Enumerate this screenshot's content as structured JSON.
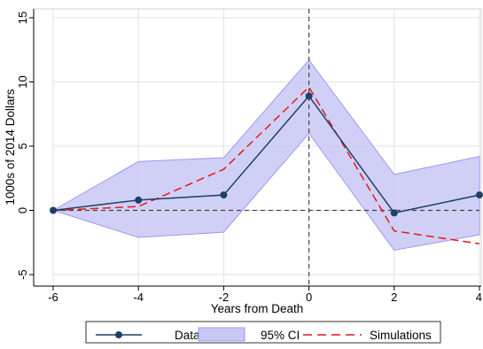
{
  "chart_data": {
    "type": "line",
    "xlabel": "Years from Death",
    "ylabel": "1000s of 2014 Dollars",
    "xlim": [
      -6,
      4
    ],
    "ylim": [
      -5,
      15
    ],
    "x_ticks": [
      -6,
      -4,
      -2,
      0,
      2,
      4
    ],
    "y_ticks": [
      -5,
      0,
      5,
      10,
      15
    ],
    "x": [
      -6,
      -4,
      -2,
      0,
      2,
      4
    ],
    "series": [
      {
        "name": "Data",
        "style": "solid-line-with-markers",
        "color": "#1f3f66",
        "values": [
          0,
          0.8,
          1.2,
          8.9,
          -0.2,
          1.2
        ]
      },
      {
        "name": "95% CI",
        "style": "band",
        "color": "#c8c8f4",
        "lower": [
          0,
          -2.1,
          -1.7,
          6.0,
          -3.1,
          -1.9
        ],
        "upper": [
          0,
          3.8,
          4.1,
          11.7,
          2.8,
          4.2
        ]
      },
      {
        "name": "Simulations",
        "style": "dashed-line",
        "color": "#e8171c",
        "values": [
          0,
          0.3,
          3.2,
          9.6,
          -1.6,
          -2.6
        ]
      }
    ],
    "reference_lines": {
      "x": 0,
      "y": 0,
      "style": "dashed"
    },
    "grid": true,
    "legend_position": "bottom",
    "legend": [
      "Data",
      "95% CI",
      "Simulations"
    ]
  }
}
